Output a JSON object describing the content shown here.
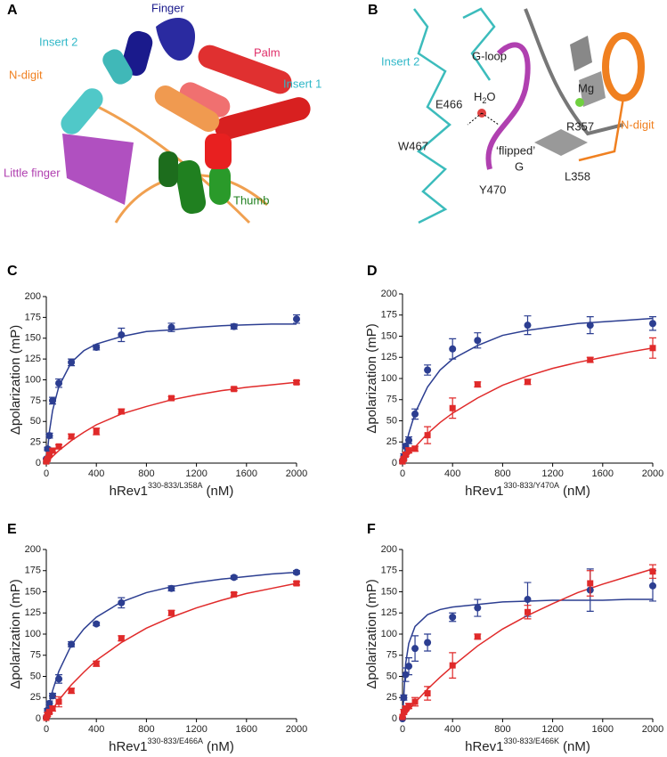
{
  "panel_a": {
    "letter": "A",
    "labels": [
      "Finger",
      "Palm",
      "Insert 2",
      "Insert 1",
      "N-digit",
      "Little finger",
      "Thumb"
    ]
  },
  "panel_b": {
    "letter": "B",
    "labels": [
      "Insert 2",
      "G-loop",
      "Mg",
      "E466",
      "W467",
      "R357",
      "N-digit",
      "L358",
      "Y470",
      "‘flipped’",
      "G"
    ],
    "water": {
      "h": "H",
      "sub": "2",
      "o": "O"
    }
  },
  "chart_data": [
    {
      "type": "scatter",
      "panel": "C",
      "y_label": "Δpolarization (mP)",
      "x_label": {
        "main": "hRev1",
        "sup": "330-833/L358A",
        "unit": "(nM)"
      },
      "xlim": [
        0,
        2000
      ],
      "xticks": [
        0,
        400,
        800,
        1200,
        1600,
        2000
      ],
      "ylim": [
        0,
        200
      ],
      "yticks": [
        0,
        25,
        50,
        75,
        100,
        125,
        150,
        175,
        200
      ],
      "x": [
        0,
        10,
        25,
        50,
        100,
        200,
        400,
        600,
        1000,
        1500,
        2000
      ],
      "series": [
        {
          "color": "#2c3e91",
          "marker": "circle",
          "values": [
            5,
            17,
            33,
            75,
            96,
            121,
            139,
            154,
            163,
            164,
            173
          ],
          "errors": [
            0,
            2,
            3,
            4,
            5,
            4,
            3,
            8,
            5,
            3,
            5
          ]
        },
        {
          "color": "#e02a2a",
          "marker": "square",
          "values": [
            2,
            5,
            10,
            15,
            20,
            32,
            38,
            62,
            78,
            89,
            97
          ],
          "errors": [
            0,
            1,
            2,
            2,
            2,
            3,
            4,
            3,
            2,
            2,
            2
          ]
        }
      ],
      "fit_x": [
        0,
        25,
        50,
        100,
        200,
        300,
        400,
        600,
        800,
        1000,
        1200,
        1400,
        1600,
        1800,
        2000
      ],
      "fits": [
        {
          "color": "#2c3e91",
          "values": [
            0,
            38,
            63,
            92,
            121,
            135,
            143,
            152,
            158,
            160,
            163,
            165,
            166,
            167,
            167
          ]
        },
        {
          "color": "#e02a2a",
          "values": [
            0,
            4,
            8,
            15,
            27,
            37,
            46,
            59,
            68,
            76,
            82,
            87,
            91,
            94,
            97
          ]
        }
      ]
    },
    {
      "type": "scatter",
      "panel": "D",
      "y_label": "Δpolarization (mP)",
      "x_label": {
        "main": "hRev1",
        "sup": "330-833/Y470A",
        "unit": "(nM)"
      },
      "xlim": [
        0,
        2000
      ],
      "xticks": [
        0,
        400,
        800,
        1200,
        1600,
        2000
      ],
      "ylim": [
        0,
        200
      ],
      "yticks": [
        0,
        25,
        50,
        75,
        100,
        125,
        150,
        175,
        200
      ],
      "x": [
        0,
        10,
        25,
        50,
        100,
        200,
        400,
        600,
        1000,
        1500,
        2000
      ],
      "series": [
        {
          "color": "#2c3e91",
          "marker": "circle",
          "values": [
            3,
            8,
            20,
            27,
            58,
            110,
            135,
            145,
            163,
            163,
            165
          ],
          "errors": [
            0,
            3,
            3,
            4,
            6,
            6,
            12,
            9,
            11,
            10,
            8
          ]
        },
        {
          "color": "#e02a2a",
          "marker": "square",
          "values": [
            2,
            5,
            10,
            15,
            17,
            33,
            65,
            93,
            96,
            122,
            136
          ],
          "errors": [
            0,
            2,
            2,
            3,
            3,
            10,
            12,
            3,
            3,
            3,
            12
          ]
        }
      ],
      "fit_x": [
        0,
        25,
        50,
        100,
        200,
        300,
        400,
        600,
        800,
        1000,
        1200,
        1400,
        1600,
        1800,
        2000
      ],
      "fits": [
        {
          "color": "#2c3e91",
          "values": [
            0,
            19,
            35,
            59,
            90,
            110,
            123,
            139,
            151,
            157,
            161,
            165,
            167,
            169,
            171
          ]
        },
        {
          "color": "#e02a2a",
          "values": [
            0,
            5,
            10,
            19,
            35,
            48,
            59,
            77,
            92,
            103,
            112,
            119,
            125,
            131,
            136
          ]
        }
      ]
    },
    {
      "type": "scatter",
      "panel": "E",
      "y_label": "Δpolarization (mP)",
      "x_label": {
        "main": "hRev1",
        "sup": "330-833/E466A",
        "unit": "(nM)"
      },
      "xlim": [
        0,
        2000
      ],
      "xticks": [
        0,
        400,
        800,
        1200,
        1600,
        2000
      ],
      "ylim": [
        0,
        200
      ],
      "yticks": [
        0,
        25,
        50,
        75,
        100,
        125,
        150,
        175,
        200
      ],
      "x": [
        0,
        10,
        25,
        50,
        100,
        200,
        400,
        600,
        1000,
        1500,
        2000
      ],
      "series": [
        {
          "color": "#2c3e91",
          "marker": "circle",
          "values": [
            2,
            10,
            18,
            27,
            47,
            88,
            112,
            137,
            154,
            167,
            173
          ],
          "errors": [
            0,
            2,
            3,
            3,
            5,
            3,
            2,
            6,
            3,
            2,
            2
          ]
        },
        {
          "color": "#e02a2a",
          "marker": "square",
          "values": [
            1,
            5,
            8,
            12,
            20,
            33,
            65,
            95,
            125,
            147,
            160
          ],
          "errors": [
            0,
            2,
            2,
            3,
            6,
            3,
            3,
            3,
            3,
            2,
            2
          ]
        }
      ],
      "fit_x": [
        0,
        25,
        50,
        100,
        200,
        300,
        400,
        600,
        800,
        1000,
        1200,
        1400,
        1600,
        1800,
        2000
      ],
      "fits": [
        {
          "color": "#2c3e91",
          "values": [
            0,
            18,
            33,
            56,
            87,
            106,
            120,
            138,
            149,
            156,
            161,
            165,
            168,
            171,
            173
          ]
        },
        {
          "color": "#e02a2a",
          "values": [
            0,
            6,
            11,
            22,
            40,
            55,
            69,
            90,
            107,
            120,
            131,
            140,
            148,
            154,
            160
          ]
        }
      ]
    },
    {
      "type": "scatter",
      "panel": "F",
      "y_label": "Δpolarization (mP)",
      "x_label": {
        "main": "hRev1",
        "sup": "330-833/E466K",
        "unit": "(nM)"
      },
      "xlim": [
        0,
        2000
      ],
      "xticks": [
        0,
        400,
        800,
        1200,
        1600,
        2000
      ],
      "ylim": [
        0,
        200
      ],
      "yticks": [
        0,
        25,
        50,
        75,
        100,
        125,
        150,
        175,
        200
      ],
      "x": [
        0,
        10,
        25,
        50,
        100,
        200,
        400,
        600,
        1000,
        1500,
        2000
      ],
      "series": [
        {
          "color": "#2c3e91",
          "marker": "circle",
          "values": [
            0,
            25,
            52,
            62,
            83,
            90,
            120,
            131,
            141,
            152,
            157
          ],
          "errors": [
            0,
            3,
            8,
            10,
            15,
            10,
            5,
            10,
            20,
            25,
            18
          ]
        },
        {
          "color": "#e02a2a",
          "marker": "square",
          "values": [
            2,
            8,
            12,
            15,
            20,
            30,
            63,
            97,
            126,
            160,
            174
          ],
          "errors": [
            0,
            3,
            3,
            3,
            5,
            8,
            15,
            3,
            8,
            15,
            8
          ]
        }
      ],
      "fit_x": [
        0,
        25,
        50,
        100,
        200,
        300,
        400,
        600,
        800,
        1000,
        1200,
        1400,
        1600,
        1800,
        2000
      ],
      "fits": [
        {
          "color": "#2c3e91",
          "values": [
            0,
            65,
            89,
            109,
            123,
            129,
            132,
            135,
            138,
            139,
            140,
            140,
            140,
            141,
            141
          ]
        },
        {
          "color": "#e02a2a",
          "values": [
            0,
            5,
            10,
            19,
            35,
            49,
            62,
            86,
            106,
            122,
            136,
            149,
            159,
            168,
            177
          ]
        }
      ]
    }
  ]
}
